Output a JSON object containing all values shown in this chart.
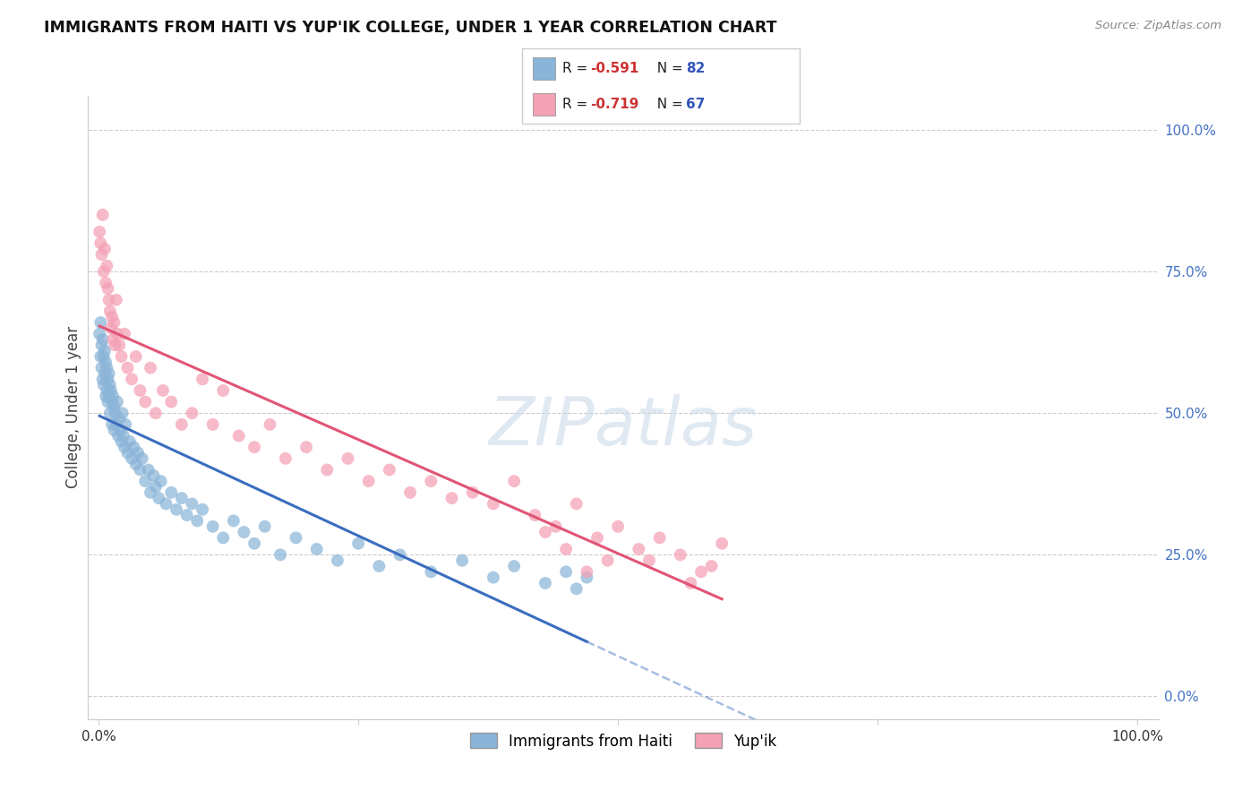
{
  "title": "IMMIGRANTS FROM HAITI VS YUP'IK COLLEGE, UNDER 1 YEAR CORRELATION CHART",
  "source": "Source: ZipAtlas.com",
  "ylabel": "College, Under 1 year",
  "background_color": "#ffffff",
  "watermark": "ZIPatlas",
  "legend_haiti_label": "Immigrants from Haiti",
  "legend_yupik_label": "Yup'ik",
  "haiti_R": "-0.591",
  "haiti_N": "82",
  "yupik_R": "-0.719",
  "yupik_N": "67",
  "haiti_color": "#8ab4d8",
  "yupik_color": "#f4a0b5",
  "haiti_line_color": "#3a6dbf",
  "yupik_line_color": "#e05575",
  "haiti_x": [
    0.001,
    0.002,
    0.002,
    0.003,
    0.003,
    0.004,
    0.004,
    0.005,
    0.005,
    0.006,
    0.006,
    0.007,
    0.007,
    0.008,
    0.008,
    0.009,
    0.009,
    0.01,
    0.01,
    0.011,
    0.011,
    0.012,
    0.013,
    0.013,
    0.014,
    0.015,
    0.015,
    0.016,
    0.017,
    0.018,
    0.019,
    0.02,
    0.021,
    0.022,
    0.023,
    0.024,
    0.025,
    0.026,
    0.028,
    0.03,
    0.032,
    0.034,
    0.036,
    0.038,
    0.04,
    0.042,
    0.045,
    0.048,
    0.05,
    0.053,
    0.055,
    0.058,
    0.06,
    0.065,
    0.07,
    0.075,
    0.08,
    0.085,
    0.09,
    0.095,
    0.1,
    0.11,
    0.12,
    0.13,
    0.14,
    0.15,
    0.16,
    0.175,
    0.19,
    0.21,
    0.23,
    0.25,
    0.27,
    0.29,
    0.32,
    0.35,
    0.38,
    0.4,
    0.43,
    0.45,
    0.46,
    0.47
  ],
  "haiti_y": [
    0.64,
    0.66,
    0.6,
    0.62,
    0.58,
    0.63,
    0.56,
    0.6,
    0.55,
    0.61,
    0.57,
    0.59,
    0.53,
    0.58,
    0.54,
    0.56,
    0.52,
    0.57,
    0.53,
    0.55,
    0.5,
    0.54,
    0.52,
    0.48,
    0.53,
    0.51,
    0.47,
    0.5,
    0.48,
    0.52,
    0.46,
    0.49,
    0.47,
    0.45,
    0.5,
    0.46,
    0.44,
    0.48,
    0.43,
    0.45,
    0.42,
    0.44,
    0.41,
    0.43,
    0.4,
    0.42,
    0.38,
    0.4,
    0.36,
    0.39,
    0.37,
    0.35,
    0.38,
    0.34,
    0.36,
    0.33,
    0.35,
    0.32,
    0.34,
    0.31,
    0.33,
    0.3,
    0.28,
    0.31,
    0.29,
    0.27,
    0.3,
    0.25,
    0.28,
    0.26,
    0.24,
    0.27,
    0.23,
    0.25,
    0.22,
    0.24,
    0.21,
    0.23,
    0.2,
    0.22,
    0.19,
    0.21
  ],
  "yupik_x": [
    0.001,
    0.002,
    0.003,
    0.004,
    0.005,
    0.006,
    0.007,
    0.008,
    0.009,
    0.01,
    0.011,
    0.012,
    0.013,
    0.014,
    0.015,
    0.016,
    0.017,
    0.018,
    0.02,
    0.022,
    0.025,
    0.028,
    0.032,
    0.036,
    0.04,
    0.045,
    0.05,
    0.055,
    0.062,
    0.07,
    0.08,
    0.09,
    0.1,
    0.11,
    0.12,
    0.135,
    0.15,
    0.165,
    0.18,
    0.2,
    0.22,
    0.24,
    0.26,
    0.28,
    0.3,
    0.32,
    0.34,
    0.36,
    0.38,
    0.4,
    0.42,
    0.44,
    0.46,
    0.48,
    0.5,
    0.52,
    0.54,
    0.56,
    0.58,
    0.6,
    0.53,
    0.57,
    0.59,
    0.45,
    0.47,
    0.49,
    0.43
  ],
  "yupik_y": [
    0.82,
    0.8,
    0.78,
    0.85,
    0.75,
    0.79,
    0.73,
    0.76,
    0.72,
    0.7,
    0.68,
    0.65,
    0.67,
    0.63,
    0.66,
    0.62,
    0.7,
    0.64,
    0.62,
    0.6,
    0.64,
    0.58,
    0.56,
    0.6,
    0.54,
    0.52,
    0.58,
    0.5,
    0.54,
    0.52,
    0.48,
    0.5,
    0.56,
    0.48,
    0.54,
    0.46,
    0.44,
    0.48,
    0.42,
    0.44,
    0.4,
    0.42,
    0.38,
    0.4,
    0.36,
    0.38,
    0.35,
    0.36,
    0.34,
    0.38,
    0.32,
    0.3,
    0.34,
    0.28,
    0.3,
    0.26,
    0.28,
    0.25,
    0.22,
    0.27,
    0.24,
    0.2,
    0.23,
    0.26,
    0.22,
    0.24,
    0.29
  ],
  "xlim": [
    0.0,
    1.0
  ],
  "ylim": [
    0.0,
    1.0
  ],
  "x_ticks": [
    0.0,
    0.25,
    0.5,
    0.75,
    1.0
  ],
  "y_ticks": [
    0.0,
    0.25,
    0.5,
    0.75,
    1.0
  ],
  "x_tick_labels": [
    "0.0%",
    "",
    "",
    "",
    "100.0%"
  ],
  "y_tick_labels_right": [
    "0.0%",
    "25.0%",
    "50.0%",
    "75.0%",
    "100.0%"
  ]
}
